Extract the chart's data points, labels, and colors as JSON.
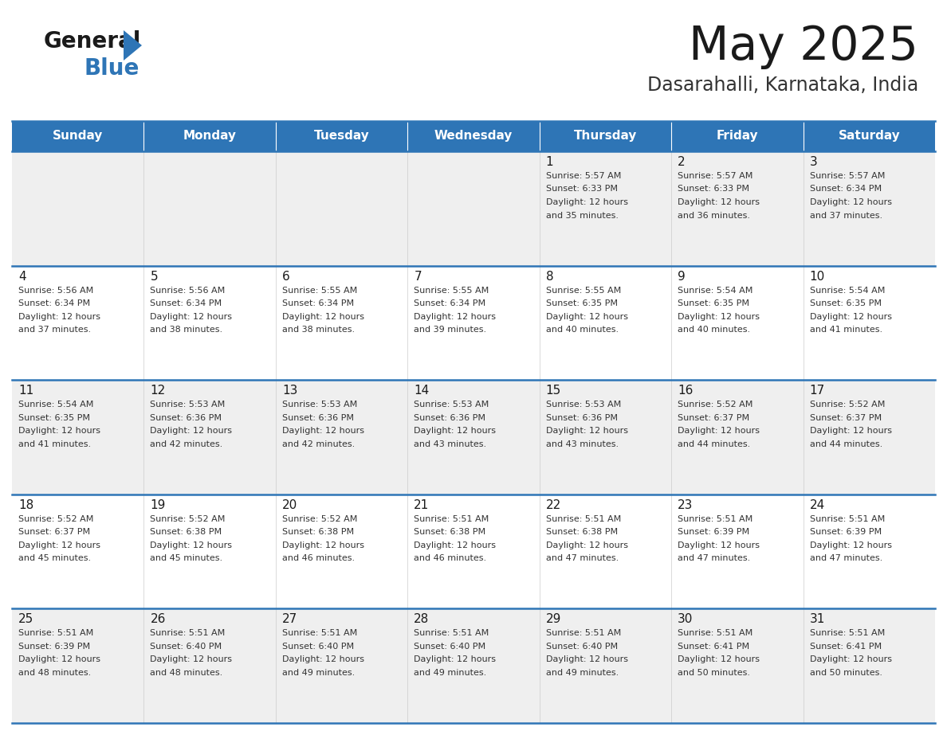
{
  "title": "May 2025",
  "subtitle": "Dasarahalli, Karnataka, India",
  "days_of_week": [
    "Sunday",
    "Monday",
    "Tuesday",
    "Wednesday",
    "Thursday",
    "Friday",
    "Saturday"
  ],
  "header_bg": "#2E75B6",
  "header_text": "#FFFFFF",
  "row_bg_odd": "#EFEFEF",
  "row_bg_even": "#FFFFFF",
  "cell_border": "#2E75B6",
  "title_color": "#1a1a1a",
  "subtitle_color": "#333333",
  "day_number_color": "#1a1a1a",
  "info_text_color": "#333333",
  "calendar_data": [
    [
      null,
      null,
      null,
      null,
      {
        "day": 1,
        "sunrise": "5:57 AM",
        "sunset": "6:33 PM",
        "daylight": "12 hours and 35 minutes."
      },
      {
        "day": 2,
        "sunrise": "5:57 AM",
        "sunset": "6:33 PM",
        "daylight": "12 hours and 36 minutes."
      },
      {
        "day": 3,
        "sunrise": "5:57 AM",
        "sunset": "6:34 PM",
        "daylight": "12 hours and 37 minutes."
      }
    ],
    [
      {
        "day": 4,
        "sunrise": "5:56 AM",
        "sunset": "6:34 PM",
        "daylight": "12 hours and 37 minutes."
      },
      {
        "day": 5,
        "sunrise": "5:56 AM",
        "sunset": "6:34 PM",
        "daylight": "12 hours and 38 minutes."
      },
      {
        "day": 6,
        "sunrise": "5:55 AM",
        "sunset": "6:34 PM",
        "daylight": "12 hours and 38 minutes."
      },
      {
        "day": 7,
        "sunrise": "5:55 AM",
        "sunset": "6:34 PM",
        "daylight": "12 hours and 39 minutes."
      },
      {
        "day": 8,
        "sunrise": "5:55 AM",
        "sunset": "6:35 PM",
        "daylight": "12 hours and 40 minutes."
      },
      {
        "day": 9,
        "sunrise": "5:54 AM",
        "sunset": "6:35 PM",
        "daylight": "12 hours and 40 minutes."
      },
      {
        "day": 10,
        "sunrise": "5:54 AM",
        "sunset": "6:35 PM",
        "daylight": "12 hours and 41 minutes."
      }
    ],
    [
      {
        "day": 11,
        "sunrise": "5:54 AM",
        "sunset": "6:35 PM",
        "daylight": "12 hours and 41 minutes."
      },
      {
        "day": 12,
        "sunrise": "5:53 AM",
        "sunset": "6:36 PM",
        "daylight": "12 hours and 42 minutes."
      },
      {
        "day": 13,
        "sunrise": "5:53 AM",
        "sunset": "6:36 PM",
        "daylight": "12 hours and 42 minutes."
      },
      {
        "day": 14,
        "sunrise": "5:53 AM",
        "sunset": "6:36 PM",
        "daylight": "12 hours and 43 minutes."
      },
      {
        "day": 15,
        "sunrise": "5:53 AM",
        "sunset": "6:36 PM",
        "daylight": "12 hours and 43 minutes."
      },
      {
        "day": 16,
        "sunrise": "5:52 AM",
        "sunset": "6:37 PM",
        "daylight": "12 hours and 44 minutes."
      },
      {
        "day": 17,
        "sunrise": "5:52 AM",
        "sunset": "6:37 PM",
        "daylight": "12 hours and 44 minutes."
      }
    ],
    [
      {
        "day": 18,
        "sunrise": "5:52 AM",
        "sunset": "6:37 PM",
        "daylight": "12 hours and 45 minutes."
      },
      {
        "day": 19,
        "sunrise": "5:52 AM",
        "sunset": "6:38 PM",
        "daylight": "12 hours and 45 minutes."
      },
      {
        "day": 20,
        "sunrise": "5:52 AM",
        "sunset": "6:38 PM",
        "daylight": "12 hours and 46 minutes."
      },
      {
        "day": 21,
        "sunrise": "5:51 AM",
        "sunset": "6:38 PM",
        "daylight": "12 hours and 46 minutes."
      },
      {
        "day": 22,
        "sunrise": "5:51 AM",
        "sunset": "6:38 PM",
        "daylight": "12 hours and 47 minutes."
      },
      {
        "day": 23,
        "sunrise": "5:51 AM",
        "sunset": "6:39 PM",
        "daylight": "12 hours and 47 minutes."
      },
      {
        "day": 24,
        "sunrise": "5:51 AM",
        "sunset": "6:39 PM",
        "daylight": "12 hours and 47 minutes."
      }
    ],
    [
      {
        "day": 25,
        "sunrise": "5:51 AM",
        "sunset": "6:39 PM",
        "daylight": "12 hours and 48 minutes."
      },
      {
        "day": 26,
        "sunrise": "5:51 AM",
        "sunset": "6:40 PM",
        "daylight": "12 hours and 48 minutes."
      },
      {
        "day": 27,
        "sunrise": "5:51 AM",
        "sunset": "6:40 PM",
        "daylight": "12 hours and 49 minutes."
      },
      {
        "day": 28,
        "sunrise": "5:51 AM",
        "sunset": "6:40 PM",
        "daylight": "12 hours and 49 minutes."
      },
      {
        "day": 29,
        "sunrise": "5:51 AM",
        "sunset": "6:40 PM",
        "daylight": "12 hours and 49 minutes."
      },
      {
        "day": 30,
        "sunrise": "5:51 AM",
        "sunset": "6:41 PM",
        "daylight": "12 hours and 50 minutes."
      },
      {
        "day": 31,
        "sunrise": "5:51 AM",
        "sunset": "6:41 PM",
        "daylight": "12 hours and 50 minutes."
      }
    ]
  ]
}
